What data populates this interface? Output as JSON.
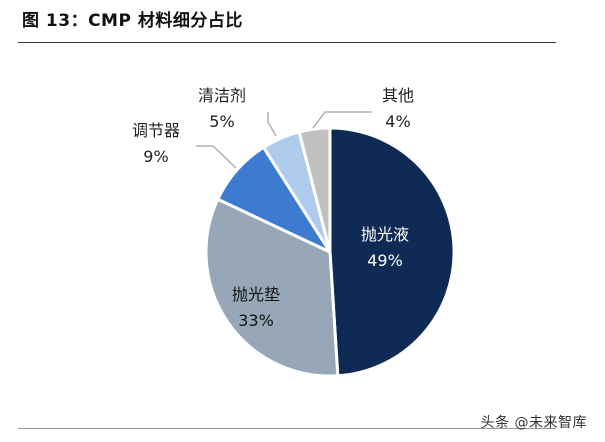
{
  "page": {
    "title": "图 13：CMP 材料细分占比",
    "watermark": "头条 @未来智库"
  },
  "chart_data": {
    "type": "pie",
    "slices": [
      {
        "label": "抛光液",
        "value": 49,
        "value_text": "49%",
        "color": "#0f2a54"
      },
      {
        "label": "抛光垫",
        "value": 33,
        "value_text": "33%",
        "color": "#97a7b8"
      },
      {
        "label": "调节器",
        "value": 9,
        "value_text": "9%",
        "color": "#3d7bd1"
      },
      {
        "label": "清洁剂",
        "value": 5,
        "value_text": "5%",
        "color": "#aecbee"
      },
      {
        "label": "其他",
        "value": 4,
        "value_text": "4%",
        "color": "#c0c0c0"
      }
    ],
    "title": "",
    "legend": "none"
  }
}
